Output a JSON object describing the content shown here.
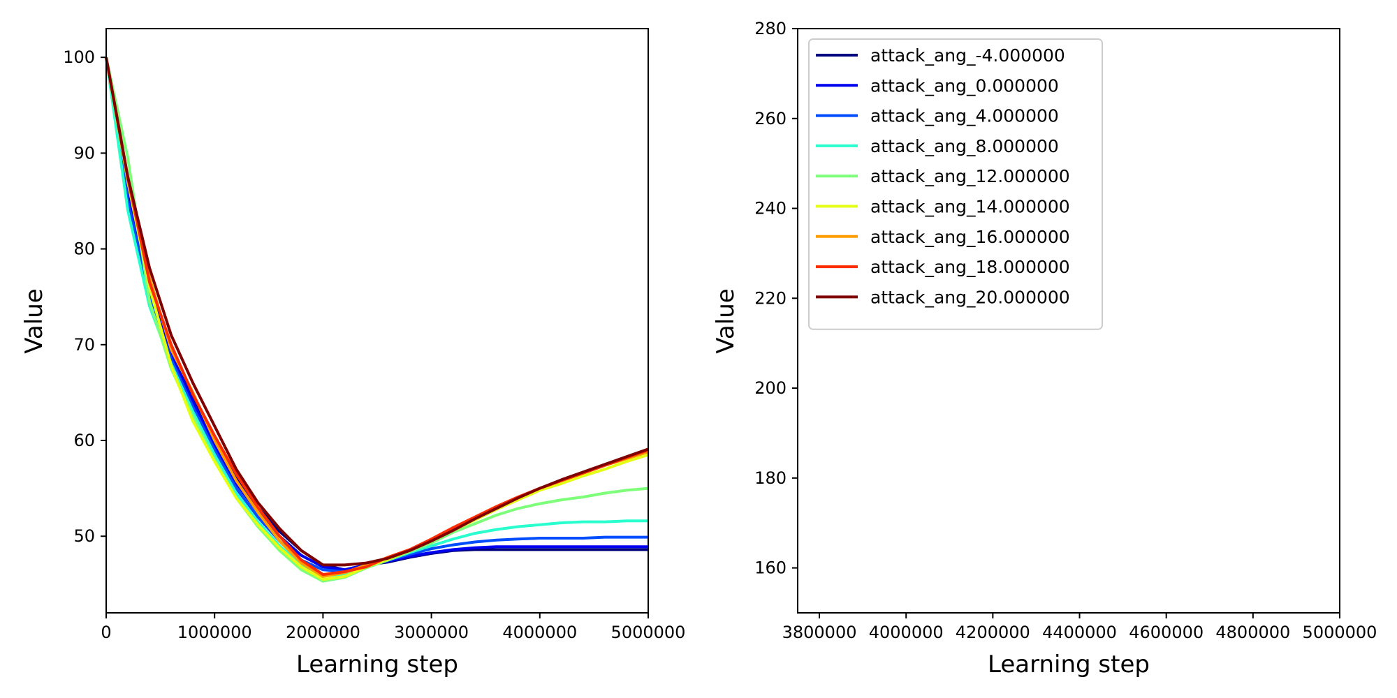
{
  "chart_data": [
    {
      "type": "line",
      "title": "",
      "xlabel": "Learning step",
      "ylabel": "Value",
      "xlim": [
        0,
        5000000
      ],
      "ylim": [
        42,
        103
      ],
      "xticks": [
        0,
        1000000,
        2000000,
        3000000,
        4000000,
        5000000
      ],
      "xtick_labels": [
        "0",
        "1000000",
        "2000000",
        "3000000",
        "4000000",
        "5000000"
      ],
      "yticks": [
        50,
        60,
        70,
        80,
        90,
        100
      ],
      "ytick_labels": [
        "50",
        "60",
        "70",
        "80",
        "90",
        "100"
      ],
      "grid": false,
      "legend": "none",
      "x": [
        0,
        200000,
        400000,
        600000,
        800000,
        1000000,
        1200000,
        1400000,
        1600000,
        1800000,
        2000000,
        2200000,
        2400000,
        2600000,
        2800000,
        3000000,
        3200000,
        3400000,
        3600000,
        3800000,
        4000000,
        4200000,
        4400000,
        4600000,
        4800000,
        5000000
      ],
      "series": [
        {
          "name": "attack_ang_-4.000000",
          "values": [
            100,
            86,
            76,
            69.5,
            64.5,
            60,
            56,
            53,
            50.5,
            48.5,
            47,
            46.5,
            47,
            47.3,
            47.8,
            48.2,
            48.5,
            48.6,
            48.6,
            48.6,
            48.6,
            48.6,
            48.6,
            48.6,
            48.6,
            48.6
          ]
        },
        {
          "name": "attack_ang_0.000000",
          "values": [
            100,
            85.5,
            75.5,
            69,
            64,
            59.5,
            55.5,
            52.5,
            50,
            48,
            46.8,
            46.5,
            47,
            47.4,
            47.9,
            48.3,
            48.6,
            48.8,
            48.9,
            48.9,
            48.9,
            48.9,
            48.9,
            48.9,
            48.9,
            48.9
          ]
        },
        {
          "name": "attack_ang_4.000000",
          "values": [
            100,
            85,
            75,
            68.5,
            63.5,
            59,
            55,
            52,
            49.5,
            47.5,
            46.5,
            46.3,
            46.9,
            47.5,
            48.1,
            48.7,
            49.1,
            49.4,
            49.6,
            49.7,
            49.8,
            49.8,
            49.8,
            49.9,
            49.9,
            49.9
          ]
        },
        {
          "name": "attack_ang_8.000000",
          "values": [
            100,
            84,
            74,
            68,
            63,
            58.5,
            54.5,
            51.5,
            49,
            47,
            45.9,
            46,
            46.8,
            47.5,
            48.3,
            49,
            49.7,
            50.3,
            50.7,
            51,
            51.2,
            51.4,
            51.5,
            51.5,
            51.6,
            51.6
          ]
        },
        {
          "name": "attack_ang_12.000000",
          "values": [
            100,
            89.5,
            74.5,
            67.5,
            62.5,
            58,
            54,
            51,
            48.5,
            46.5,
            45.3,
            45.7,
            46.7,
            47.5,
            48.4,
            49.3,
            50.4,
            51.3,
            52.2,
            52.9,
            53.4,
            53.8,
            54.1,
            54.5,
            54.8,
            55
          ]
        },
        {
          "name": "attack_ang_14.000000",
          "values": [
            100,
            87,
            76,
            67.8,
            62,
            57.8,
            54,
            51.2,
            48.8,
            46.8,
            45.5,
            45.8,
            46.8,
            47.6,
            48.5,
            49.5,
            50.6,
            51.7,
            52.8,
            53.8,
            54.8,
            55.5,
            56.3,
            57,
            57.8,
            58.5
          ]
        },
        {
          "name": "attack_ang_16.000000",
          "values": [
            100,
            87.2,
            77,
            69.5,
            65,
            60,
            55.8,
            52.5,
            49.5,
            47.2,
            45.8,
            46.2,
            47,
            47.8,
            48.6,
            49.6,
            50.8,
            51.9,
            53,
            54,
            55,
            55.8,
            56.6,
            57.4,
            58.1,
            58.8
          ]
        },
        {
          "name": "attack_ang_18.000000",
          "values": [
            100,
            87.5,
            76.5,
            70,
            64.8,
            60.5,
            56.5,
            53,
            50,
            47.5,
            46,
            46.3,
            46.8,
            47.8,
            48.6,
            49.7,
            50.9,
            52,
            53.1,
            54.1,
            55,
            55.8,
            56.6,
            57.4,
            58.2,
            59
          ]
        },
        {
          "name": "attack_ang_20.000000",
          "values": [
            100,
            87.5,
            78,
            71,
            66,
            61.5,
            57,
            53.5,
            50.8,
            48.5,
            47,
            47,
            47.2,
            47.7,
            48.5,
            49.5,
            50.6,
            51.8,
            52.9,
            54,
            55,
            55.9,
            56.7,
            57.5,
            58.3,
            59.1
          ]
        }
      ]
    },
    {
      "type": "line",
      "title": "",
      "xlabel": "Learning step",
      "ylabel": "Value",
      "xlim": [
        3750000,
        5000000
      ],
      "ylim": [
        150,
        280
      ],
      "xticks": [
        3800000,
        4000000,
        4200000,
        4400000,
        4600000,
        4800000,
        5000000
      ],
      "xtick_labels": [
        "3800000",
        "4000000",
        "4200000",
        "4400000",
        "4600000",
        "4800000",
        "5000000"
      ],
      "yticks": [
        160,
        180,
        200,
        220,
        240,
        260,
        280
      ],
      "ytick_labels": [
        "160",
        "180",
        "200",
        "220",
        "240",
        "260",
        "280"
      ],
      "grid": false,
      "legend": "top-left",
      "series": [
        {
          "name": "attack_ang_-4.000000",
          "values": []
        },
        {
          "name": "attack_ang_0.000000",
          "values": []
        },
        {
          "name": "attack_ang_4.000000",
          "values": []
        },
        {
          "name": "attack_ang_8.000000",
          "values": []
        },
        {
          "name": "attack_ang_12.000000",
          "values": []
        },
        {
          "name": "attack_ang_14.000000",
          "values": []
        },
        {
          "name": "attack_ang_16.000000",
          "values": []
        },
        {
          "name": "attack_ang_18.000000",
          "values": []
        },
        {
          "name": "attack_ang_20.000000",
          "values": []
        }
      ]
    }
  ],
  "series_colors": [
    "#00007f",
    "#0000f1",
    "#004cff",
    "#29ffce",
    "#7dff7a",
    "#e4ff13",
    "#ff9c00",
    "#ff2e00",
    "#7f0000"
  ]
}
